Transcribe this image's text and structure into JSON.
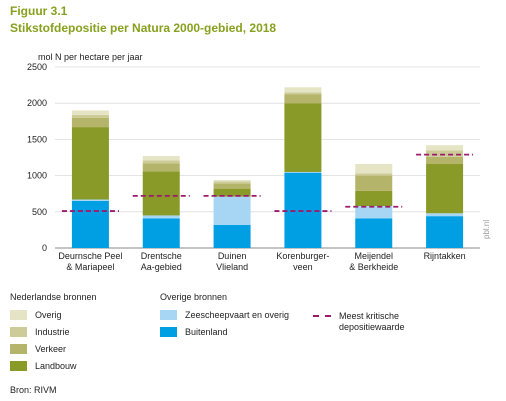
{
  "figure_label": "Figuur 3.1",
  "figure_title": "Stikstofdepositie per Natura 2000-gebied, 2018",
  "source": "Bron: RIVM",
  "watermark": "pbl.nl",
  "chart_data": {
    "type": "bar",
    "stacked": true,
    "unit_label": "mol N per hectare per jaar",
    "ylim": [
      0,
      2500
    ],
    "yticks": [
      0,
      500,
      1000,
      1500,
      2000,
      2500
    ],
    "grid": true,
    "categories": [
      [
        "Deurnsche Peel",
        "& Mariapeel"
      ],
      [
        "Drentsche",
        "Aa-gebied"
      ],
      [
        "Duinen",
        "Vlieland"
      ],
      [
        "Korenburger-",
        "veen"
      ],
      [
        "Meijendel",
        "& Berkheide"
      ],
      [
        "Rijntakken"
      ]
    ],
    "series": [
      {
        "name": "Buitenland",
        "color": "#009fe3",
        "values": [
          650,
          410,
          320,
          1040,
          410,
          440
        ]
      },
      {
        "name": "Zeescheepvaart en overig",
        "color": "#a6d6f4",
        "values": [
          20,
          40,
          390,
          10,
          170,
          40
        ]
      },
      {
        "name": "Landbouw",
        "color": "#8a9a28",
        "values": [
          1000,
          610,
          110,
          950,
          210,
          680
        ]
      },
      {
        "name": "Verkeer",
        "color": "#b4b46a",
        "values": [
          130,
          110,
          70,
          120,
          210,
          100
        ]
      },
      {
        "name": "Industrie",
        "color": "#cdcc98",
        "values": [
          40,
          40,
          30,
          30,
          30,
          90
        ]
      },
      {
        "name": "Overig",
        "color": "#e5e5c6",
        "values": [
          60,
          60,
          20,
          70,
          130,
          70
        ]
      }
    ],
    "critical_values": [
      510,
      720,
      720,
      510,
      570,
      1290
    ],
    "critical_label": "Meest kritische depositiewaarde",
    "critical_color": "#9b1a6c"
  },
  "legend": {
    "group1_title": "Nederlandse bronnen",
    "group1_items": [
      "Overig",
      "Industrie",
      "Verkeer",
      "Landbouw"
    ],
    "group2_title": "Overige bronnen",
    "group2_items": [
      "Zeescheepvaart en overig",
      "Buitenland"
    ],
    "critical_line1": "Meest kritische",
    "critical_line2": "depositiewaarde"
  }
}
